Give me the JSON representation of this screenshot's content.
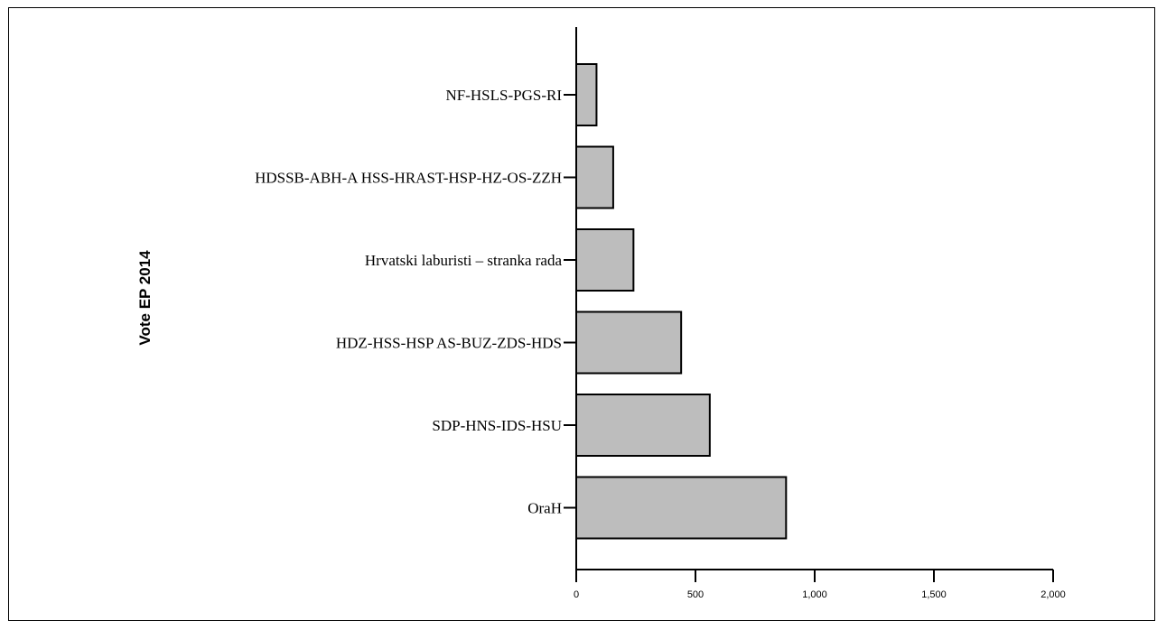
{
  "chart_data": {
    "type": "bar",
    "orientation": "horizontal",
    "categories": [
      "NF-HSLS-PGS-RI",
      "HDSSB-ABH-A HSS-HRAST-HSP-HZ-OS-ZZH",
      "Hrvatski laburisti – stranka rada",
      "HDZ-HSS-HSP AS-BUZ-ZDS-HDS",
      "SDP-HNS-IDS-HSU",
      "OraH"
    ],
    "values": [
      85,
      155,
      240,
      440,
      560,
      880
    ],
    "xlim": [
      0,
      2000
    ],
    "x_ticks": [
      0,
      500,
      1000,
      1500,
      2000
    ],
    "x_tick_labels": [
      "0",
      "500",
      "1,000",
      "1,500",
      "2,000"
    ],
    "xlabel": "",
    "ylabel": "Vote EP 2014",
    "title": "",
    "grid": false,
    "legend": "none",
    "bar_color": "#bdbdbd",
    "edge_color": "#000000"
  }
}
